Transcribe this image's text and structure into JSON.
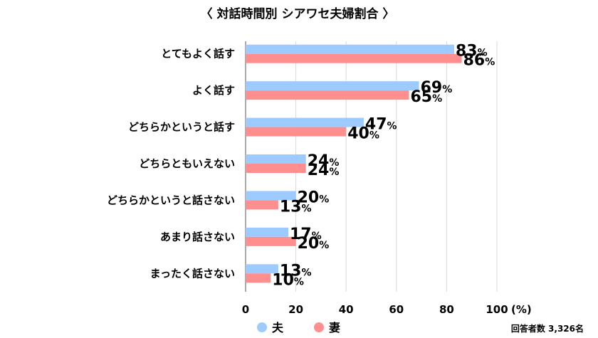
{
  "chart_data": {
    "type": "bar",
    "orientation": "horizontal",
    "title": "〈 対話時間別 シアワセ夫婦割合 〉",
    "categories": [
      "とてもよく話す",
      "よく話す",
      "どちらかというと話す",
      "どちらともいえない",
      "どちらかというと話さない",
      "あまり話さない",
      "まったく話さない"
    ],
    "series": [
      {
        "name": "夫",
        "color": "#9ecbff",
        "values": [
          83,
          69,
          47,
          24,
          20,
          17,
          13
        ]
      },
      {
        "name": "妻",
        "color": "#ff8f8f",
        "values": [
          86,
          65,
          40,
          24,
          13,
          20,
          10
        ]
      }
    ],
    "xlim": [
      0,
      100
    ],
    "xticks": [
      "0",
      "20",
      "40",
      "60",
      "80",
      "100"
    ],
    "xunit": "(%)",
    "value_suffix": "%",
    "grid": true,
    "legend_position": "bottom"
  },
  "note": "回答者数 3,326名"
}
